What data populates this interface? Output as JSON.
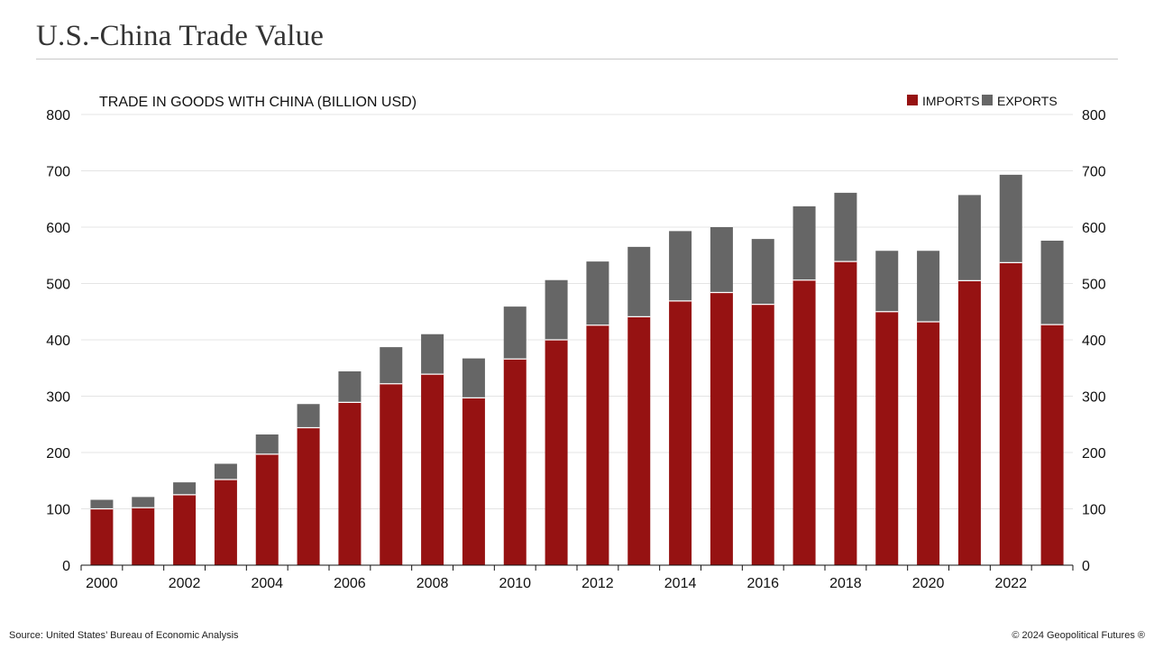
{
  "page": {
    "title": "U.S.-China Trade Value",
    "source": "Source: United States’ Bureau of Economic Analysis",
    "copyright": "© 2024 Geopolitical Futures ®"
  },
  "colors": {
    "imports": "#961212",
    "exports": "#666666",
    "grid": "#e4e4e4",
    "axis": "#111111"
  },
  "chart_data": {
    "type": "bar",
    "stacked": true,
    "title": "TRADE IN GOODS WITH CHINA (BILLION USD)",
    "categories": [
      "2000",
      "2001",
      "2002",
      "2003",
      "2004",
      "2005",
      "2006",
      "2007",
      "2008",
      "2009",
      "2010",
      "2011",
      "2012",
      "2013",
      "2014",
      "2015",
      "2016",
      "2017",
      "2018",
      "2019",
      "2020",
      "2021",
      "2022",
      "2023"
    ],
    "x_tick_labels": [
      "2000",
      "2002",
      "2004",
      "2006",
      "2008",
      "2010",
      "2012",
      "2014",
      "2016",
      "2018",
      "2020",
      "2022"
    ],
    "series": [
      {
        "name": "IMPORTS",
        "color": "#961212",
        "values": [
          100,
          102,
          125,
          152,
          197,
          244,
          289,
          322,
          339,
          297,
          366,
          400,
          426,
          441,
          469,
          484,
          463,
          506,
          539,
          450,
          432,
          505,
          537,
          427
        ]
      },
      {
        "name": "EXPORTS",
        "color": "#666666",
        "values": [
          16,
          19,
          22,
          28,
          35,
          42,
          55,
          65,
          71,
          70,
          93,
          106,
          113,
          124,
          124,
          116,
          116,
          131,
          122,
          108,
          126,
          152,
          156,
          149
        ]
      }
    ],
    "ylim": [
      0,
      800
    ],
    "yticks": [
      0,
      100,
      200,
      300,
      400,
      500,
      600,
      700,
      800
    ],
    "y_axis_both_sides": true,
    "grid": "horizontal",
    "legend_position": "top-right"
  }
}
